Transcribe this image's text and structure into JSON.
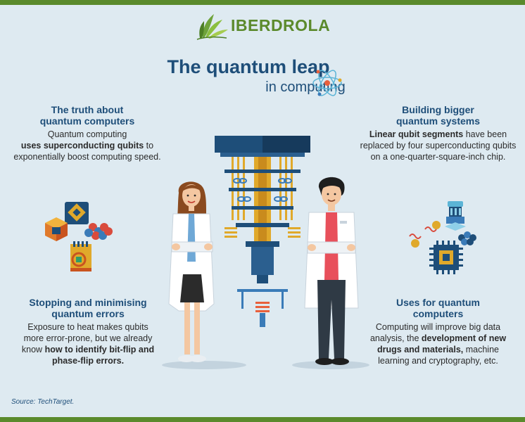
{
  "brand": {
    "name": "IBERDROLA",
    "color": "#5b8a2c"
  },
  "title": "The quantum leap",
  "subtitle": "in computing",
  "sections": {
    "truth": {
      "heading_1": "The truth about",
      "heading_2": "quantum computers",
      "text_1": "Quantum computing",
      "bold_1": "uses superconducting qubits",
      "text_2": " to",
      "text_3": "exponentially boost computing speed."
    },
    "building": {
      "heading_1": "Building bigger",
      "heading_2": "quantum systems",
      "bold_1": "Linear qubit segments",
      "text_1": " have been",
      "text_2": "replaced by four superconducting qubits",
      "text_3": "on a one-quarter-square-inch chip."
    },
    "stopping": {
      "heading_1": "Stopping and minimising",
      "heading_2": "quantum errors",
      "text_1": "Exposure to heat makes qubits",
      "text_2": "more error-prone, but we already",
      "text_3": "know ",
      "bold_1": "how to identify bit-flip and",
      "bold_2": "phase-flip errors."
    },
    "uses": {
      "heading_1": "Uses for quantum",
      "heading_2": "computers",
      "text_1": "Computing will improve big data",
      "text_2": "analysis, the ",
      "bold_1": "development of new",
      "bold_2": "drugs and materials,",
      "text_3": " machine",
      "text_4": "learning and cryptography, etc."
    }
  },
  "source": "Source: TechTarget.",
  "icons": [
    "leaf-logo-icon",
    "atom-icon",
    "qubit-blocks-icon",
    "chip-icon",
    "quantum-computer-icon",
    "scientist-woman",
    "scientist-man"
  ],
  "colors": {
    "navy": "#1e4e79",
    "background": "#deeaf1",
    "bar": "#5a8a2c",
    "gold": "#e0a92b"
  }
}
